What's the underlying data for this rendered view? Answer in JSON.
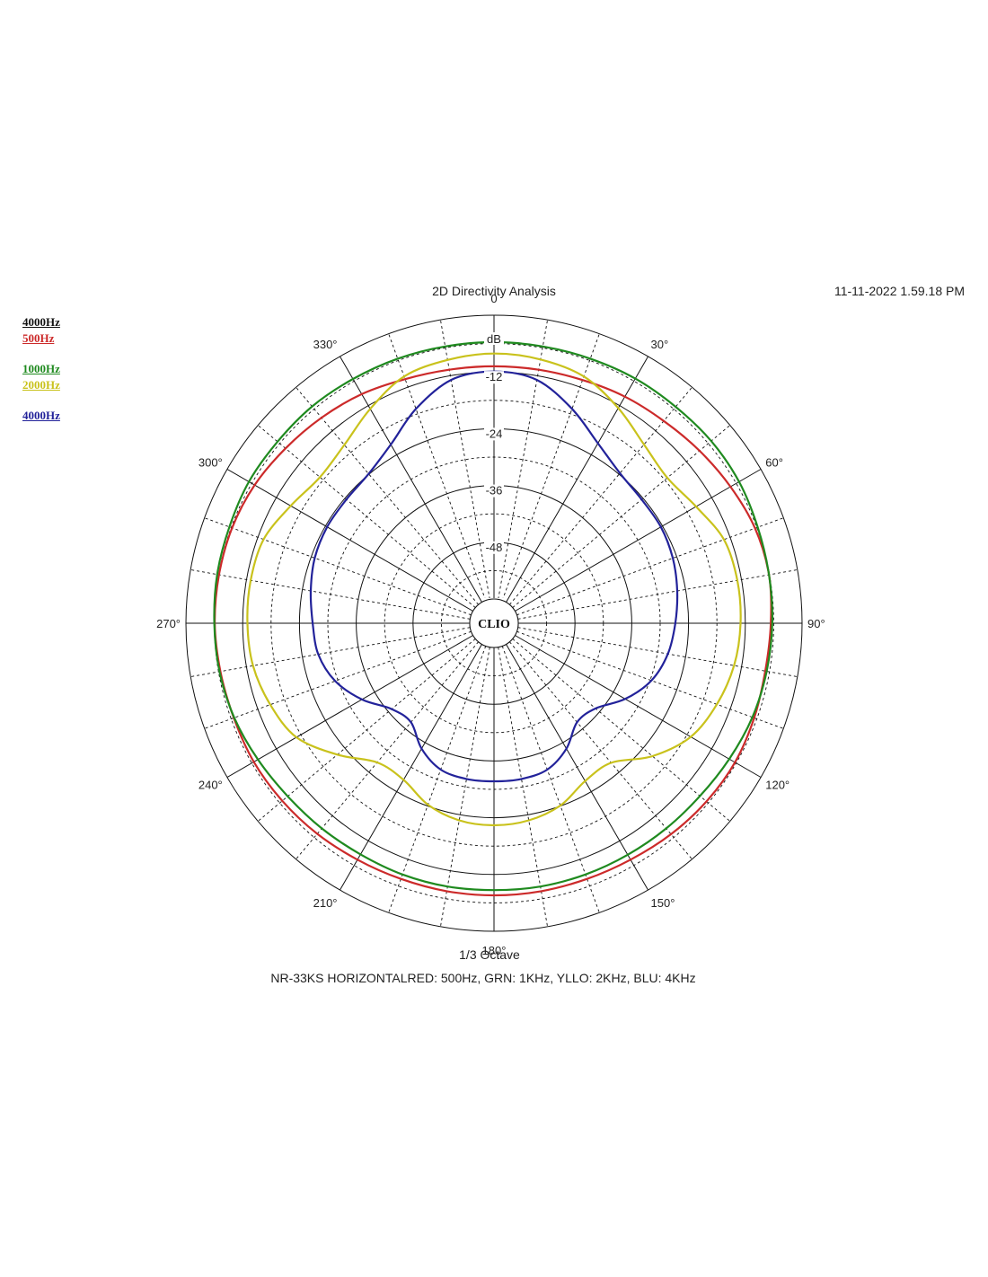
{
  "header": {
    "title": "2D Directivity Analysis",
    "timestamp": "11-11-2022 1.59.18 PM"
  },
  "legend": [
    {
      "label": "4000Hz",
      "color": "#111111"
    },
    {
      "label": "500Hz",
      "color": "#cc2a2a"
    },
    {
      "label": "1000Hz",
      "color": "#1f8a1f"
    },
    {
      "label": "2000Hz",
      "color": "#c9c21c"
    },
    {
      "label": "4000Hz",
      "color": "#22229a"
    }
  ],
  "footer": {
    "subtitle": "1/3 Octave",
    "caption": "NR-33KS HORIZONTALRED: 500Hz, GRN: 1KHz, YLLO: 2KHz, BLU: 4KHz"
  },
  "logo_text": "CLIO",
  "chart_data": {
    "type": "polar",
    "title": "2D Directivity Analysis",
    "unit": "dB",
    "radial_range": [
      -60,
      0
    ],
    "radial_ticks": [
      0,
      -12,
      -24,
      -36,
      -48,
      -60
    ],
    "angle_labels": [
      "0",
      "30°",
      "60°",
      "90°",
      "120°",
      "150°",
      "180°",
      "210°",
      "240°",
      "270°",
      "300°",
      "330°"
    ],
    "grid": true,
    "angles": [
      0,
      10,
      20,
      30,
      40,
      50,
      60,
      70,
      80,
      90,
      100,
      110,
      120,
      130,
      140,
      150,
      160,
      170,
      180,
      190,
      200,
      210,
      220,
      230,
      240,
      250,
      260,
      270,
      280,
      290,
      300,
      310,
      320,
      330,
      340,
      350
    ],
    "series": [
      {
        "name": "500Hz",
        "color": "#cc2a2a",
        "values": [
          -10.8,
          -10.7,
          -10.4,
          -9.8,
          -9.3,
          -8.4,
          -7.4,
          -6.4,
          -6.1,
          -6.6,
          -6.9,
          -6.6,
          -6.3,
          -6.5,
          -6.9,
          -7.4,
          -7.6,
          -7.6,
          -7.6,
          -7.6,
          -7.6,
          -7.4,
          -7.0,
          -6.7,
          -6.5,
          -6.6,
          -6.4,
          -6.1,
          -6.1,
          -6.2,
          -6.7,
          -7.6,
          -8.4,
          -9.2,
          -10.2,
          -10.7
        ]
      },
      {
        "name": "1000Hz",
        "color": "#1f8a1f",
        "values": [
          -5.7,
          -5.7,
          -5.6,
          -5.4,
          -5.4,
          -5.2,
          -5.3,
          -5.8,
          -6.1,
          -6.3,
          -6.6,
          -7.0,
          -7.7,
          -8.3,
          -8.5,
          -8.6,
          -8.6,
          -8.6,
          -8.7,
          -8.6,
          -8.6,
          -8.7,
          -8.5,
          -8.2,
          -7.5,
          -6.7,
          -6.2,
          -6.0,
          -5.7,
          -5.6,
          -5.3,
          -5.4,
          -5.3,
          -5.5,
          -5.6,
          -5.7
        ]
      },
      {
        "name": "2000Hz",
        "color": "#c9c21c",
        "values": [
          -8.1,
          -8.5,
          -9.6,
          -12.6,
          -15.8,
          -17.3,
          -15.8,
          -13.4,
          -12.9,
          -13.0,
          -13.6,
          -15.0,
          -17.1,
          -21.4,
          -26.6,
          -26.6,
          -24.1,
          -22.8,
          -22.4,
          -22.8,
          -24.3,
          -26.9,
          -26.7,
          -21.9,
          -16.9,
          -14.8,
          -13.4,
          -13.0,
          -12.9,
          -13.3,
          -15.5,
          -17.1,
          -15.9,
          -12.8,
          -9.6,
          -8.6
        ]
      },
      {
        "name": "4000Hz",
        "color": "#22229a",
        "values": [
          -11.9,
          -12.9,
          -16.9,
          -21.2,
          -23.7,
          -24.4,
          -24.4,
          -24.9,
          -25.8,
          -26.8,
          -27.8,
          -29.7,
          -33.1,
          -37.1,
          -37.8,
          -34.5,
          -32.2,
          -31.7,
          -31.7,
          -31.7,
          -32.2,
          -34.5,
          -37.8,
          -36.9,
          -32.9,
          -29.4,
          -27.4,
          -26.8,
          -25.8,
          -24.8,
          -24.4,
          -24.4,
          -23.9,
          -21.5,
          -16.9,
          -12.9
        ]
      }
    ]
  }
}
